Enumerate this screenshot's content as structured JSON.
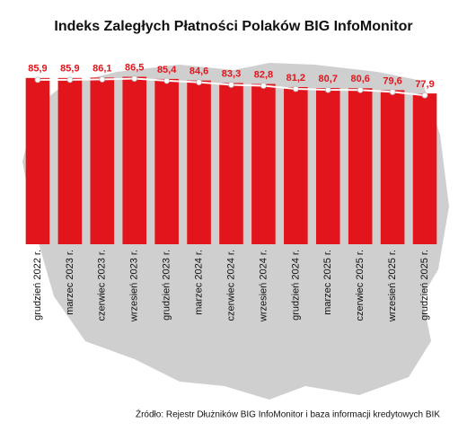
{
  "chart_data": {
    "type": "bar",
    "title": "Indeks Zaległych Płatności Polaków BIG InfoMonitor",
    "categories": [
      "grudzień 2022 r.",
      "marzec 2023 r.",
      "czerwiec 2023 r.",
      "wrzesień 2023 r.",
      "grudzień 2023 r.",
      "marzec 2024 r.",
      "czerwiec 2024 r.",
      "wrzesień 2024 r.",
      "grudzień 2024 r.",
      "marzec 2025 r.",
      "czerwiec 2025 r.",
      "wrzesień 2025 r.",
      "grudzień 2025 r."
    ],
    "values": [
      85.9,
      85.9,
      86.1,
      86.5,
      85.4,
      84.6,
      83.3,
      82.8,
      81.2,
      80.7,
      80.6,
      79.6,
      77.9
    ],
    "value_labels": [
      "85,9",
      "85,9",
      "86,1",
      "86,5",
      "85,4",
      "84,6",
      "83,3",
      "82,8",
      "81,2",
      "80,7",
      "80,6",
      "79,6",
      "77,9"
    ],
    "color": "#e3151c",
    "ylim": [
      0,
      90
    ],
    "source": "Źródło: Rejestr Dłużników BIG InfoMonitor i baza informacji kredytowych BIK"
  }
}
